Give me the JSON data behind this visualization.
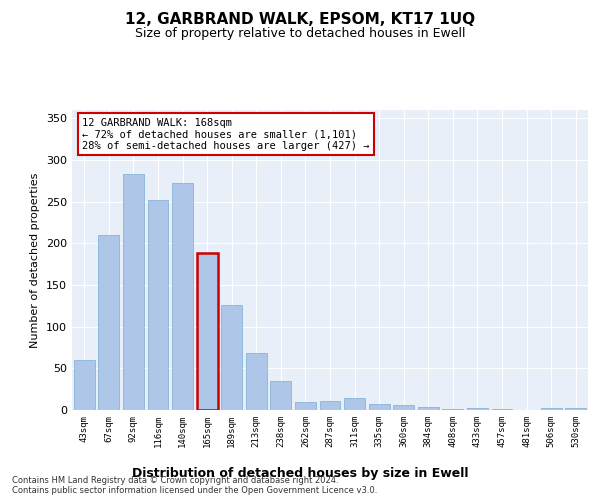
{
  "title": "12, GARBRAND WALK, EPSOM, KT17 1UQ",
  "subtitle": "Size of property relative to detached houses in Ewell",
  "xlabel": "Distribution of detached houses by size in Ewell",
  "ylabel": "Number of detached properties",
  "categories": [
    "43sqm",
    "67sqm",
    "92sqm",
    "116sqm",
    "140sqm",
    "165sqm",
    "189sqm",
    "213sqm",
    "238sqm",
    "262sqm",
    "287sqm",
    "311sqm",
    "335sqm",
    "360sqm",
    "384sqm",
    "408sqm",
    "433sqm",
    "457sqm",
    "481sqm",
    "506sqm",
    "530sqm"
  ],
  "values": [
    60,
    210,
    283,
    252,
    272,
    188,
    126,
    68,
    35,
    10,
    11,
    14,
    7,
    6,
    4,
    1,
    3,
    1,
    0,
    2,
    3
  ],
  "bar_color": "#aec6e8",
  "bar_edge_color": "#7aadd4",
  "highlight_index": 5,
  "highlight_border_color": "#cc0000",
  "ylim": [
    0,
    360
  ],
  "yticks": [
    0,
    50,
    100,
    150,
    200,
    250,
    300,
    350
  ],
  "background_color": "#e8eff8",
  "grid_color": "#ffffff",
  "annotation_text": "12 GARBRAND WALK: 168sqm\n← 72% of detached houses are smaller (1,101)\n28% of semi-detached houses are larger (427) →",
  "footnote1": "Contains HM Land Registry data © Crown copyright and database right 2024.",
  "footnote2": "Contains public sector information licensed under the Open Government Licence v3.0."
}
